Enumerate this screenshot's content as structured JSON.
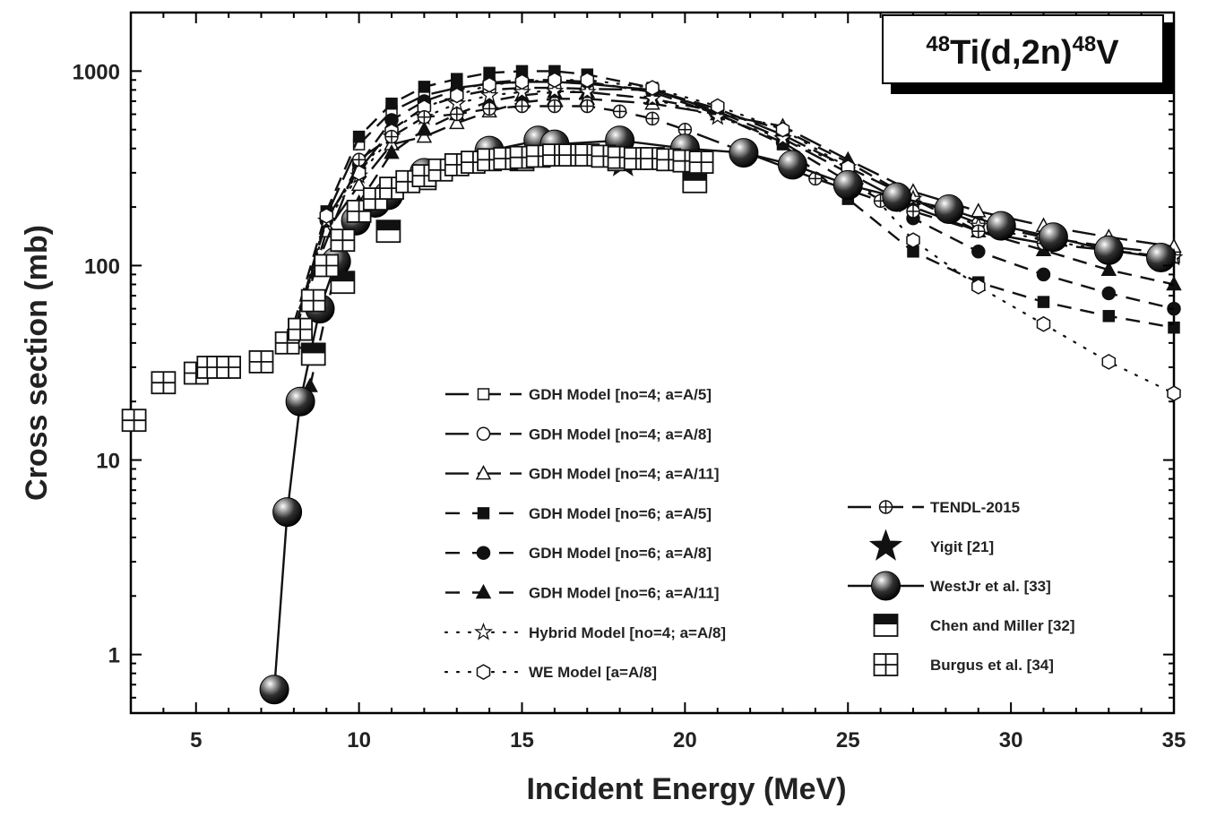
{
  "chart_data": {
    "type": "line",
    "title": {
      "pre": "48",
      "main": "Ti(d,2n)",
      "post": "48",
      "end": "V"
    },
    "xlabel": "Incident Energy (MeV)",
    "ylabel": "Cross section (mb)",
    "xlim": [
      3,
      35
    ],
    "ylim": [
      0.5,
      2000
    ],
    "yscale": "log",
    "xticks": [
      5,
      10,
      15,
      20,
      25,
      30,
      35
    ],
    "yticks": [
      1,
      10,
      100,
      1000
    ],
    "ytick_labels": [
      "1",
      "10",
      "100",
      "1000"
    ],
    "series": [
      {
        "name": "GDH Model [no=4; a=A/5]",
        "marker": "square-open",
        "dash": "long",
        "x": [
          8,
          9,
          10,
          11,
          12,
          13,
          14,
          15,
          16,
          17,
          19,
          21,
          23,
          25,
          27,
          29,
          31,
          33,
          35
        ],
        "y": [
          45,
          180,
          420,
          620,
          750,
          820,
          860,
          880,
          880,
          860,
          800,
          620,
          450,
          300,
          200,
          150,
          130,
          120,
          110
        ]
      },
      {
        "name": "GDH Model [no=4; a=A/8]",
        "marker": "circle-open",
        "dash": "long",
        "x": [
          8,
          9,
          10,
          11,
          12,
          13,
          14,
          15,
          16,
          17,
          19,
          21,
          23,
          25,
          27,
          29,
          31,
          33,
          35
        ],
        "y": [
          42,
          175,
          310,
          500,
          650,
          740,
          800,
          820,
          820,
          810,
          800,
          640,
          470,
          320,
          220,
          165,
          140,
          125,
          115
        ]
      },
      {
        "name": "GDH Model [no=4; a=A/11]",
        "marker": "triangle-open",
        "dash": "long",
        "x": [
          8,
          9,
          10,
          11,
          12,
          13,
          14,
          15,
          16,
          17,
          19,
          21,
          23,
          25,
          27,
          29,
          31,
          33,
          35
        ],
        "y": [
          40,
          150,
          260,
          420,
          460,
          540,
          620,
          690,
          720,
          720,
          680,
          600,
          520,
          350,
          240,
          190,
          160,
          140,
          125
        ]
      },
      {
        "name": "GDH Model [no=6; a=A/5]",
        "marker": "square-filled",
        "dash": "medium",
        "x": [
          8,
          9,
          10,
          11,
          12,
          13,
          14,
          15,
          16,
          17,
          19,
          21,
          23,
          25,
          27,
          29,
          31,
          33,
          35
        ],
        "y": [
          50,
          190,
          460,
          680,
          830,
          910,
          980,
          1000,
          1000,
          960,
          820,
          600,
          420,
          220,
          118,
          82,
          65,
          55,
          48
        ]
      },
      {
        "name": "GDH Model [no=6; a=A/8]",
        "marker": "circle-filled",
        "dash": "medium",
        "x": [
          8,
          9,
          10,
          11,
          12,
          13,
          14,
          15,
          16,
          17,
          19,
          21,
          23,
          25,
          27,
          29,
          31,
          33,
          35
        ],
        "y": [
          45,
          170,
          330,
          560,
          700,
          800,
          870,
          900,
          900,
          880,
          780,
          600,
          430,
          270,
          175,
          118,
          90,
          72,
          60
        ]
      },
      {
        "name": "GDH Model [no=6; a=A/11]",
        "marker": "triangle-filled",
        "dash": "medium",
        "x": [
          8.5,
          9.5,
          10,
          11,
          12,
          13,
          14,
          15,
          16,
          17,
          19,
          21,
          23,
          25,
          27,
          29,
          31,
          33,
          35
        ],
        "y": [
          24,
          140,
          210,
          380,
          500,
          600,
          700,
          750,
          780,
          780,
          720,
          620,
          500,
          340,
          220,
          150,
          120,
          95,
          80
        ]
      },
      {
        "name": "Hybrid Model [no=4; a=A/8]",
        "marker": "star-open",
        "dash": "dot",
        "x": [
          8,
          9,
          10,
          11,
          12,
          13,
          14,
          15,
          16,
          17,
          19,
          21,
          23,
          25,
          27,
          29,
          31,
          33,
          35
        ],
        "y": [
          42,
          170,
          290,
          460,
          580,
          680,
          750,
          780,
          790,
          780,
          720,
          580,
          450,
          320,
          220,
          160,
          135,
          120,
          110
        ]
      },
      {
        "name": "WE Model [a=A/8]",
        "marker": "hexagon-open",
        "dash": "dot",
        "x": [
          8,
          9,
          10,
          11,
          12,
          13,
          14,
          15,
          16,
          17,
          19,
          21,
          23,
          25,
          27,
          29,
          31,
          33,
          35
        ],
        "y": [
          45,
          180,
          300,
          490,
          650,
          750,
          850,
          880,
          900,
          900,
          820,
          660,
          500,
          320,
          135,
          78,
          50,
          32,
          22
        ]
      },
      {
        "name": "TENDL-2015",
        "marker": "circle-plus",
        "dash": "long",
        "x": [
          7.8,
          10,
          11,
          12,
          13,
          14,
          15,
          16,
          17,
          18,
          19,
          20,
          24,
          26,
          27,
          29,
          31
        ],
        "y": [
          42,
          350,
          460,
          580,
          600,
          640,
          660,
          660,
          660,
          620,
          570,
          500,
          280,
          215,
          190,
          150,
          130
        ]
      },
      {
        "name": "Yigit [21]",
        "marker": "star-filled",
        "dash": "none",
        "x": [
          18.1
        ],
        "y": [
          340
        ]
      },
      {
        "name": "WestJr et al. [33]",
        "marker": "sphere",
        "dash": "solid",
        "x": [
          7.4,
          7.8,
          8.2,
          8.8,
          9.3,
          9.9,
          10.5,
          10.9,
          12,
          14,
          15.5,
          16,
          18,
          20,
          21.8,
          23.3,
          25,
          26.5,
          28.1,
          29.7,
          31.3,
          33,
          34.6
        ],
        "y": [
          0.66,
          5.4,
          20,
          60,
          105,
          170,
          210,
          230,
          300,
          390,
          440,
          420,
          440,
          400,
          380,
          330,
          260,
          225,
          195,
          160,
          140,
          120,
          110
        ]
      },
      {
        "name": "Chen and Miller [32]",
        "marker": "square-half",
        "dash": "none",
        "x": [
          8.6,
          9.5,
          10.9,
          12,
          15,
          18,
          20.3
        ],
        "y": [
          35,
          82,
          150,
          280,
          350,
          350,
          270
        ]
      },
      {
        "name": "Burgus et al. [34]",
        "marker": "square-cross",
        "dash": "none",
        "x": [
          3.1,
          4.0,
          5.0,
          5.4,
          5.7,
          6.0,
          7.0,
          7.8,
          8.2,
          8.6,
          9.0,
          9.5,
          10.0,
          10.5,
          11.0,
          11.5,
          12.0,
          12.5,
          13.0,
          13.5,
          14.0,
          14.5,
          15.0,
          15.5,
          16.0,
          16.5,
          17.0,
          17.5,
          18.0,
          18.5,
          19.0,
          19.5,
          20.0,
          20.5
        ],
        "y": [
          16,
          25,
          28,
          30,
          30,
          30,
          32,
          40,
          47,
          66,
          100,
          135,
          190,
          220,
          250,
          270,
          290,
          310,
          330,
          340,
          350,
          355,
          360,
          365,
          370,
          370,
          370,
          365,
          360,
          355,
          355,
          350,
          345,
          340
        ]
      }
    ]
  }
}
